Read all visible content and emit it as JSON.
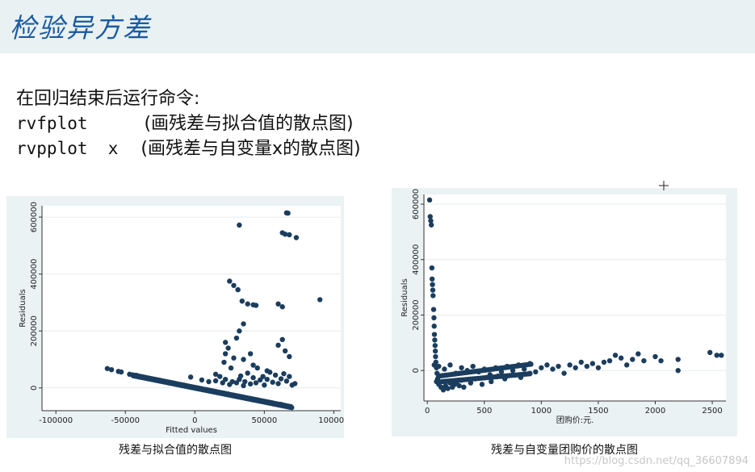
{
  "title": "检验异方差",
  "intro": "在回归结束后运行命令:",
  "commands": [
    {
      "cmd": "rvfplot",
      "desc": "(画残差与拟合值的散点图)"
    },
    {
      "cmd": "rvpplot  x",
      "desc": "(画残差与自变量x的散点图)"
    }
  ],
  "charts": [
    {
      "caption": "残差与拟合值的散点图",
      "chart_data": {
        "type": "scatter",
        "xlabel": "Fitted values",
        "ylabel": "Residuals",
        "xlim": [
          -110000,
          105000
        ],
        "ylim": [
          -80000,
          640000
        ],
        "xticks": [
          -100000,
          -50000,
          0,
          50000,
          100000
        ],
        "yticks": [
          0,
          200000,
          400000,
          600000
        ],
        "xtick_labels": [
          "-100000",
          "-50000",
          "0",
          "50000",
          "100000"
        ],
        "ytick_labels": [
          "0",
          "200000",
          "400000",
          "600000"
        ],
        "points": [
          [
            -63000,
            68000
          ],
          [
            -60000,
            64000
          ],
          [
            -55000,
            58000
          ],
          [
            -53000,
            56000
          ],
          [
            -47000,
            48000
          ],
          [
            -42000,
            44000
          ],
          [
            -35000,
            36000
          ],
          [
            -25000,
            26000
          ],
          [
            -15000,
            16000
          ],
          [
            -5000,
            6000
          ],
          [
            5000,
            -5000
          ],
          [
            15000,
            -14000
          ],
          [
            25000,
            -24000
          ],
          [
            35000,
            -33000
          ],
          [
            45000,
            -42000
          ],
          [
            55000,
            -52000
          ],
          [
            62000,
            -58000
          ],
          [
            68000,
            -66000
          ],
          [
            -3000,
            38000
          ],
          [
            5000,
            28000
          ],
          [
            10000,
            22000
          ],
          [
            15000,
            48000
          ],
          [
            15000,
            25000
          ],
          [
            18000,
            40000
          ],
          [
            20000,
            18000
          ],
          [
            22000,
            30000
          ],
          [
            25000,
            12000
          ],
          [
            27000,
            22000
          ],
          [
            30000,
            18000
          ],
          [
            32000,
            30000
          ],
          [
            33000,
            42000
          ],
          [
            35000,
            8000
          ],
          [
            36000,
            22000
          ],
          [
            38000,
            52000
          ],
          [
            40000,
            14000
          ],
          [
            42000,
            36000
          ],
          [
            44000,
            18000
          ],
          [
            45000,
            70000
          ],
          [
            47000,
            28000
          ],
          [
            49000,
            40000
          ],
          [
            50000,
            10000
          ],
          [
            52000,
            30000
          ],
          [
            54000,
            55000
          ],
          [
            56000,
            20000
          ],
          [
            58000,
            45000
          ],
          [
            60000,
            15000
          ],
          [
            62000,
            32000
          ],
          [
            64000,
            50000
          ],
          [
            66000,
            24000
          ],
          [
            68000,
            40000
          ],
          [
            70000,
            10000
          ],
          [
            72000,
            15000
          ],
          [
            21000,
            90000
          ],
          [
            22000,
            120000
          ],
          [
            22000,
            160000
          ],
          [
            24000,
            140000
          ],
          [
            26000,
            70000
          ],
          [
            28000,
            105000
          ],
          [
            30000,
            175000
          ],
          [
            32000,
            200000
          ],
          [
            35000,
            225000
          ],
          [
            35000,
            100000
          ],
          [
            40000,
            120000
          ],
          [
            42000,
            80000
          ],
          [
            52000,
            60000
          ],
          [
            60000,
            150000
          ],
          [
            63000,
            170000
          ],
          [
            65000,
            130000
          ],
          [
            68000,
            110000
          ],
          [
            25000,
            375000
          ],
          [
            28000,
            360000
          ],
          [
            31000,
            345000
          ],
          [
            34000,
            305000
          ],
          [
            38000,
            295000
          ],
          [
            42000,
            292000
          ],
          [
            44000,
            290000
          ],
          [
            60000,
            295000
          ],
          [
            63000,
            285000
          ],
          [
            90000,
            310000
          ],
          [
            32000,
            572000
          ],
          [
            63000,
            545000
          ],
          [
            65000,
            540000
          ],
          [
            68000,
            538000
          ],
          [
            73000,
            528000
          ],
          [
            66000,
            615000
          ],
          [
            67000,
            614000
          ]
        ]
      }
    },
    {
      "caption": "残差与自变量团购价的散点图",
      "chart_data": {
        "type": "scatter",
        "xlabel": "团购价:元.",
        "ylabel": "Residuals",
        "xlim": [
          -30,
          2620
        ],
        "ylim": [
          -110000,
          635000
        ],
        "xticks": [
          0,
          500,
          1000,
          1500,
          2000,
          2500
        ],
        "yticks": [
          0,
          200000,
          400000,
          600000
        ],
        "xtick_labels": [
          "0",
          "500",
          "1000",
          "1500",
          "2000",
          "2500"
        ],
        "ytick_labels": [
          "0",
          "200000",
          "400000",
          "600000"
        ],
        "points": [
          [
            20,
            615000
          ],
          [
            25,
            555000
          ],
          [
            30,
            540000
          ],
          [
            35,
            525000
          ],
          [
            40,
            370000
          ],
          [
            42,
            330000
          ],
          [
            45,
            310000
          ],
          [
            48,
            290000
          ],
          [
            50,
            270000
          ],
          [
            55,
            220000
          ],
          [
            58,
            190000
          ],
          [
            60,
            160000
          ],
          [
            62,
            130000
          ],
          [
            65,
            110000
          ],
          [
            68,
            90000
          ],
          [
            70,
            70000
          ],
          [
            72,
            50000
          ],
          [
            75,
            30000
          ],
          [
            80,
            10000
          ],
          [
            85,
            -10000
          ],
          [
            90,
            -30000
          ],
          [
            60,
            20000
          ],
          [
            80,
            -40000
          ],
          [
            100,
            -50000
          ],
          [
            120,
            -60000
          ],
          [
            140,
            -70000
          ],
          [
            160,
            -55000
          ],
          [
            180,
            -65000
          ],
          [
            200,
            -45000
          ],
          [
            220,
            -60000
          ],
          [
            240,
            -50000
          ],
          [
            260,
            -40000
          ],
          [
            280,
            -55000
          ],
          [
            300,
            -35000
          ],
          [
            100,
            15000
          ],
          [
            150,
            5000
          ],
          [
            200,
            20000
          ],
          [
            250,
            -10000
          ],
          [
            300,
            10000
          ],
          [
            350,
            0
          ],
          [
            400,
            15000
          ],
          [
            450,
            -5000
          ],
          [
            500,
            5000
          ],
          [
            550,
            -15000
          ],
          [
            600,
            10000
          ],
          [
            650,
            -5000
          ],
          [
            700,
            15000
          ],
          [
            750,
            0
          ],
          [
            800,
            20000
          ],
          [
            850,
            5000
          ],
          [
            900,
            25000
          ],
          [
            950,
            -5000
          ],
          [
            1000,
            10000
          ],
          [
            1050,
            20000
          ],
          [
            1100,
            5000
          ],
          [
            1150,
            15000
          ],
          [
            1200,
            -10000
          ],
          [
            1250,
            20000
          ],
          [
            1300,
            10000
          ],
          [
            1350,
            30000
          ],
          [
            1400,
            15000
          ],
          [
            1450,
            25000
          ],
          [
            1500,
            10000
          ],
          [
            1550,
            30000
          ],
          [
            1600,
            35000
          ],
          [
            1650,
            55000
          ],
          [
            1700,
            45000
          ],
          [
            1750,
            20000
          ],
          [
            1800,
            40000
          ],
          [
            1850,
            60000
          ],
          [
            1900,
            35000
          ],
          [
            2000,
            50000
          ],
          [
            2050,
            35000
          ],
          [
            2200,
            40000
          ],
          [
            2200,
            0
          ],
          [
            2480,
            65000
          ],
          [
            2540,
            55000
          ],
          [
            2580,
            55000
          ],
          [
            320,
            -60000
          ],
          [
            380,
            -45000
          ],
          [
            420,
            -30000
          ],
          [
            480,
            -50000
          ],
          [
            520,
            -25000
          ],
          [
            560,
            -40000
          ],
          [
            620,
            -20000
          ],
          [
            680,
            -30000
          ],
          [
            750,
            -15000
          ],
          [
            820,
            -25000
          ],
          [
            900,
            -10000
          ]
        ]
      }
    }
  ],
  "watermark": "https://blog.csdn.net/qq_36607894"
}
